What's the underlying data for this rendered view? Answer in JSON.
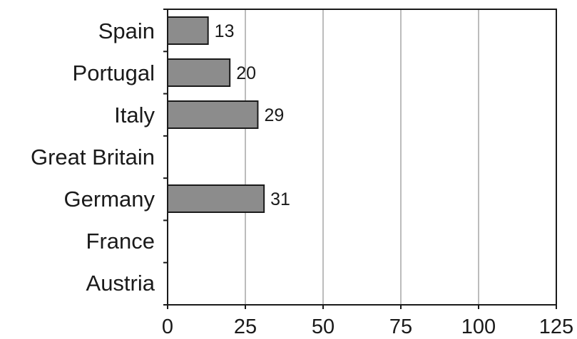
{
  "chart_data": {
    "type": "bar",
    "orientation": "horizontal",
    "categories": [
      "Spain",
      "Portugal",
      "Italy",
      "Great Britain",
      "Germany",
      "France",
      "Austria"
    ],
    "values": [
      13,
      20,
      29,
      null,
      31,
      null,
      null
    ],
    "data_labels": [
      "13",
      "20",
      "29",
      "",
      "31",
      "",
      ""
    ],
    "x_ticks": [
      "0",
      "25",
      "50",
      "75",
      "100",
      "125"
    ],
    "xlim": [
      0,
      125
    ],
    "grid": "vertical",
    "legend": "none",
    "title": "",
    "xlabel": "",
    "ylabel": ""
  },
  "colors": {
    "bar_fill": "#8c8c8c",
    "bar_stroke": "#1a1a1a",
    "gridline": "#7a7a7a",
    "frame": "#1a1a1a",
    "text": "#1a1a1a"
  }
}
